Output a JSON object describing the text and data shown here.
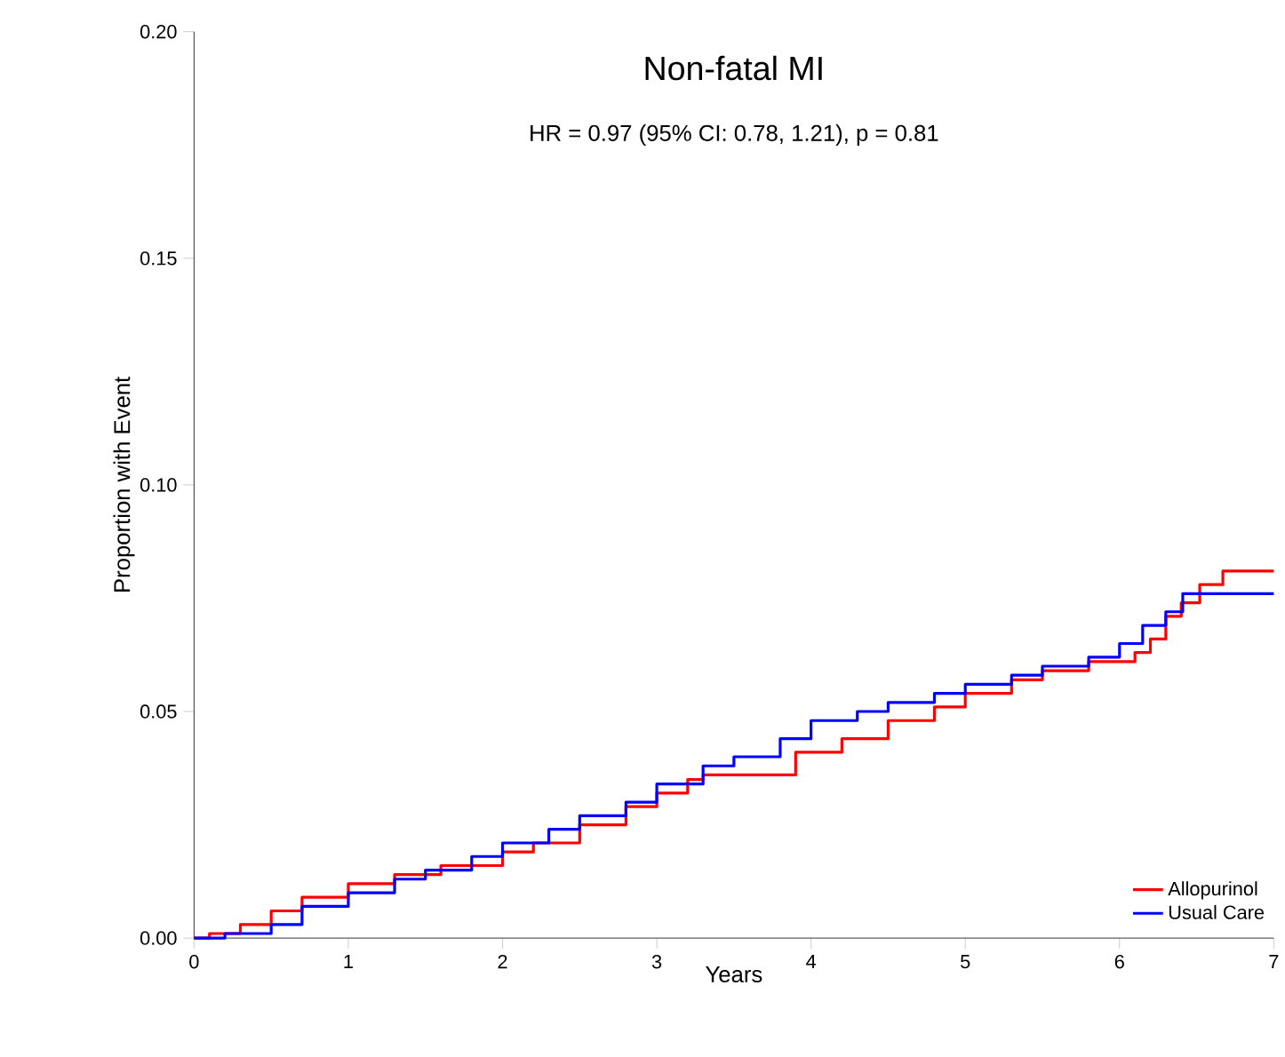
{
  "chart_data": {
    "type": "step",
    "title": "Non-fatal MI",
    "subtitle": "HR = 0.97 (95% CI: 0.78, 1.21), p = 0.81",
    "xlabel": "Years",
    "ylabel": "Proportion with Event",
    "series": [
      {
        "name": "Allopurinol",
        "color": "#ff0000",
        "x": [
          0,
          0.1,
          0.3,
          0.5,
          0.7,
          1,
          1.3,
          1.6,
          2,
          2.2,
          2.5,
          2.8,
          3,
          3.2,
          3.3,
          3.7,
          3.9,
          4.2,
          4.5,
          4.8,
          5,
          5.3,
          5.5,
          5.8,
          6.1,
          6.2,
          6.3,
          6.4,
          6.52,
          6.67,
          7
        ],
        "values": [
          0,
          0.001,
          0.003,
          0.006,
          0.009,
          0.012,
          0.014,
          0.016,
          0.019,
          0.021,
          0.025,
          0.029,
          0.032,
          0.035,
          0.036,
          0.036,
          0.041,
          0.044,
          0.048,
          0.051,
          0.054,
          0.057,
          0.059,
          0.061,
          0.063,
          0.066,
          0.071,
          0.074,
          0.078,
          0.081,
          0.081
        ]
      },
      {
        "name": "Usual Care",
        "color": "#0000ff",
        "x": [
          0,
          0.2,
          0.5,
          0.7,
          1,
          1.3,
          1.5,
          1.8,
          2,
          2.3,
          2.5,
          2.8,
          3,
          3.3,
          3.5,
          3.8,
          4,
          4.3,
          4.5,
          4.8,
          5,
          5.3,
          5.5,
          5.8,
          6,
          6.15,
          6.3,
          6.41,
          7
        ],
        "values": [
          0,
          0.001,
          0.003,
          0.007,
          0.01,
          0.013,
          0.015,
          0.018,
          0.021,
          0.024,
          0.027,
          0.03,
          0.034,
          0.038,
          0.04,
          0.044,
          0.048,
          0.05,
          0.052,
          0.054,
          0.056,
          0.058,
          0.06,
          0.062,
          0.065,
          0.069,
          0.072,
          0.076,
          0.076
        ]
      }
    ],
    "xlim": [
      0,
      7
    ],
    "ylim": [
      0,
      0.2
    ],
    "xticks": [
      0,
      1,
      2,
      3,
      4,
      5,
      6,
      7
    ],
    "yticks": [
      {
        "value": 0,
        "label": "0.00"
      },
      {
        "value": 0.05,
        "label": "0.05"
      },
      {
        "value": 0.1,
        "label": "0.10"
      },
      {
        "value": 0.15,
        "label": "0.15"
      },
      {
        "value": 0.2,
        "label": "0.20"
      }
    ],
    "legend": "bottom right",
    "grid": false,
    "line_style": "solid",
    "marker": "none"
  }
}
